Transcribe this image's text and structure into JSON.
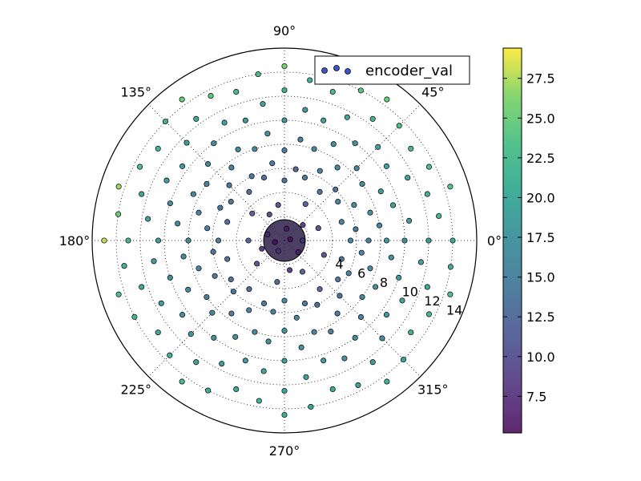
{
  "chart_data": {
    "type": "scatter",
    "projection": "polar",
    "theta_ticks": [
      {
        "deg": 0,
        "label": "0°"
      },
      {
        "deg": 45,
        "label": "45°"
      },
      {
        "deg": 90,
        "label": "90°"
      },
      {
        "deg": 135,
        "label": "135°"
      },
      {
        "deg": 180,
        "label": "180°"
      },
      {
        "deg": 225,
        "label": "225°"
      },
      {
        "deg": 270,
        "label": "270°"
      },
      {
        "deg": 315,
        "label": "315°"
      }
    ],
    "r_ticks": [
      2,
      4,
      6,
      8,
      10,
      12,
      14
    ],
    "r_tick_labels": [
      "4",
      "6",
      "8",
      "10",
      "12",
      "14"
    ],
    "rlim": [
      0,
      16
    ],
    "grid": true,
    "legend": {
      "label": "encoder_val",
      "location": "upper right"
    },
    "colorbar": {
      "cmap": "viridis",
      "range": [
        5.2,
        29.4
      ],
      "ticks": [
        7.5,
        10.0,
        12.5,
        15.0,
        17.5,
        20.0,
        22.5,
        25.0,
        27.5
      ],
      "tick_labels": [
        "7.5",
        "10.0",
        "12.5",
        "15.0",
        "17.5",
        "20.0",
        "22.5",
        "25.0",
        "27.5"
      ]
    },
    "series": [
      {
        "name": "encoder_val",
        "points": [
          {
            "theta": 0,
            "r": 5.5,
            "c": 16
          },
          {
            "theta": 0,
            "r": 7.0,
            "c": 15
          },
          {
            "theta": 0,
            "r": 8.5,
            "c": 18
          },
          {
            "theta": 0,
            "r": 10.0,
            "c": 17
          },
          {
            "theta": 0,
            "r": 12.0,
            "c": 19
          },
          {
            "theta": 0,
            "r": 14.0,
            "c": 20
          },
          {
            "theta": 9,
            "r": 6.0,
            "c": 14
          },
          {
            "theta": 9,
            "r": 8.0,
            "c": 16
          },
          {
            "theta": 9,
            "r": 10.5,
            "c": 18
          },
          {
            "theta": 9,
            "r": 13.0,
            "c": 22
          },
          {
            "theta": 18,
            "r": 5.0,
            "c": 15
          },
          {
            "theta": 18,
            "r": 7.5,
            "c": 17
          },
          {
            "theta": 18,
            "r": 9.5,
            "c": 19
          },
          {
            "theta": 18,
            "r": 12.5,
            "c": 21
          },
          {
            "theta": 18,
            "r": 14.5,
            "c": 24
          },
          {
            "theta": 27,
            "r": 6.5,
            "c": 16
          },
          {
            "theta": 27,
            "r": 9.0,
            "c": 18
          },
          {
            "theta": 27,
            "r": 11.5,
            "c": 20
          },
          {
            "theta": 27,
            "r": 13.5,
            "c": 23
          },
          {
            "theta": 36,
            "r": 5.5,
            "c": 15
          },
          {
            "theta": 36,
            "r": 8.0,
            "c": 17
          },
          {
            "theta": 36,
            "r": 10.5,
            "c": 19
          },
          {
            "theta": 36,
            "r": 13.0,
            "c": 22
          },
          {
            "theta": 45,
            "r": 6.0,
            "c": 14
          },
          {
            "theta": 45,
            "r": 8.5,
            "c": 16
          },
          {
            "theta": 45,
            "r": 11.0,
            "c": 19
          },
          {
            "theta": 45,
            "r": 13.5,
            "c": 23
          },
          {
            "theta": 54,
            "r": 5.0,
            "c": 13
          },
          {
            "theta": 54,
            "r": 7.5,
            "c": 16
          },
          {
            "theta": 54,
            "r": 10.0,
            "c": 18
          },
          {
            "theta": 54,
            "r": 12.5,
            "c": 21
          },
          {
            "theta": 54,
            "r": 14.5,
            "c": 25
          },
          {
            "theta": 63,
            "r": 6.5,
            "c": 15
          },
          {
            "theta": 63,
            "r": 9.0,
            "c": 17
          },
          {
            "theta": 63,
            "r": 11.5,
            "c": 20
          },
          {
            "theta": 63,
            "r": 14.0,
            "c": 24
          },
          {
            "theta": 72,
            "r": 5.5,
            "c": 14
          },
          {
            "theta": 72,
            "r": 8.0,
            "c": 16
          },
          {
            "theta": 72,
            "r": 10.5,
            "c": 19
          },
          {
            "theta": 72,
            "r": 13.0,
            "c": 22
          },
          {
            "theta": 81,
            "r": 6.0,
            "c": 12
          },
          {
            "theta": 81,
            "r": 8.5,
            "c": 15
          },
          {
            "theta": 81,
            "r": 11.0,
            "c": 18
          },
          {
            "theta": 81,
            "r": 13.5,
            "c": 21
          },
          {
            "theta": 90,
            "r": 5.0,
            "c": 13
          },
          {
            "theta": 90,
            "r": 7.5,
            "c": 15
          },
          {
            "theta": 90,
            "r": 10.0,
            "c": 18
          },
          {
            "theta": 90,
            "r": 12.5,
            "c": 21
          },
          {
            "theta": 90,
            "r": 14.5,
            "c": 26
          },
          {
            "theta": 99,
            "r": 6.5,
            "c": 14
          },
          {
            "theta": 99,
            "r": 9.0,
            "c": 17
          },
          {
            "theta": 99,
            "r": 11.5,
            "c": 19
          },
          {
            "theta": 99,
            "r": 14.0,
            "c": 23
          },
          {
            "theta": 108,
            "r": 5.5,
            "c": 13
          },
          {
            "theta": 108,
            "r": 8.0,
            "c": 16
          },
          {
            "theta": 108,
            "r": 10.5,
            "c": 18
          },
          {
            "theta": 108,
            "r": 13.0,
            "c": 22
          },
          {
            "theta": 117,
            "r": 6.0,
            "c": 14
          },
          {
            "theta": 117,
            "r": 8.5,
            "c": 16
          },
          {
            "theta": 117,
            "r": 11.0,
            "c": 19
          },
          {
            "theta": 117,
            "r": 13.5,
            "c": 24
          },
          {
            "theta": 126,
            "r": 5.0,
            "c": 12
          },
          {
            "theta": 126,
            "r": 7.5,
            "c": 15
          },
          {
            "theta": 126,
            "r": 10.0,
            "c": 17
          },
          {
            "theta": 126,
            "r": 12.5,
            "c": 20
          },
          {
            "theta": 126,
            "r": 14.5,
            "c": 25
          },
          {
            "theta": 135,
            "r": 6.5,
            "c": 14
          },
          {
            "theta": 135,
            "r": 9.0,
            "c": 16
          },
          {
            "theta": 135,
            "r": 11.5,
            "c": 19
          },
          {
            "theta": 135,
            "r": 14.0,
            "c": 22
          },
          {
            "theta": 144,
            "r": 5.5,
            "c": 13
          },
          {
            "theta": 144,
            "r": 8.0,
            "c": 15
          },
          {
            "theta": 144,
            "r": 10.5,
            "c": 18
          },
          {
            "theta": 144,
            "r": 13.0,
            "c": 21
          },
          {
            "theta": 153,
            "r": 6.0,
            "c": 14
          },
          {
            "theta": 153,
            "r": 8.5,
            "c": 16
          },
          {
            "theta": 153,
            "r": 11.0,
            "c": 18
          },
          {
            "theta": 153,
            "r": 13.5,
            "c": 23
          },
          {
            "theta": 162,
            "r": 5.0,
            "c": 13
          },
          {
            "theta": 162,
            "r": 7.5,
            "c": 15
          },
          {
            "theta": 162,
            "r": 10.0,
            "c": 17
          },
          {
            "theta": 162,
            "r": 12.5,
            "c": 20
          },
          {
            "theta": 162,
            "r": 14.5,
            "c": 27
          },
          {
            "theta": 171,
            "r": 6.5,
            "c": 14
          },
          {
            "theta": 171,
            "r": 9.0,
            "c": 16
          },
          {
            "theta": 171,
            "r": 11.5,
            "c": 19
          },
          {
            "theta": 171,
            "r": 14.0,
            "c": 25
          },
          {
            "theta": 180,
            "r": 5.5,
            "c": 15
          },
          {
            "theta": 180,
            "r": 8.0,
            "c": 17
          },
          {
            "theta": 180,
            "r": 10.5,
            "c": 19
          },
          {
            "theta": 180,
            "r": 13.0,
            "c": 22
          },
          {
            "theta": 180,
            "r": 15.0,
            "c": 28
          },
          {
            "theta": 189,
            "r": 6.0,
            "c": 14
          },
          {
            "theta": 189,
            "r": 8.5,
            "c": 16
          },
          {
            "theta": 189,
            "r": 11.0,
            "c": 18
          },
          {
            "theta": 189,
            "r": 13.5,
            "c": 21
          },
          {
            "theta": 198,
            "r": 5.0,
            "c": 13
          },
          {
            "theta": 198,
            "r": 7.5,
            "c": 15
          },
          {
            "theta": 198,
            "r": 10.0,
            "c": 17
          },
          {
            "theta": 198,
            "r": 12.5,
            "c": 20
          },
          {
            "theta": 198,
            "r": 14.5,
            "c": 23
          },
          {
            "theta": 207,
            "r": 6.5,
            "c": 14
          },
          {
            "theta": 207,
            "r": 9.0,
            "c": 16
          },
          {
            "theta": 207,
            "r": 11.5,
            "c": 18
          },
          {
            "theta": 207,
            "r": 14.0,
            "c": 22
          },
          {
            "theta": 216,
            "r": 5.5,
            "c": 13
          },
          {
            "theta": 216,
            "r": 8.0,
            "c": 15
          },
          {
            "theta": 216,
            "r": 10.5,
            "c": 17
          },
          {
            "theta": 216,
            "r": 13.0,
            "c": 20
          },
          {
            "theta": 225,
            "r": 6.0,
            "c": 14
          },
          {
            "theta": 225,
            "r": 8.5,
            "c": 16
          },
          {
            "theta": 225,
            "r": 11.0,
            "c": 18
          },
          {
            "theta": 225,
            "r": 13.5,
            "c": 21
          },
          {
            "theta": 234,
            "r": 5.0,
            "c": 12
          },
          {
            "theta": 234,
            "r": 7.5,
            "c": 14
          },
          {
            "theta": 234,
            "r": 10.0,
            "c": 17
          },
          {
            "theta": 234,
            "r": 12.5,
            "c": 19
          },
          {
            "theta": 234,
            "r": 14.5,
            "c": 22
          },
          {
            "theta": 243,
            "r": 6.5,
            "c": 15
          },
          {
            "theta": 243,
            "r": 9.0,
            "c": 17
          },
          {
            "theta": 243,
            "r": 11.5,
            "c": 18
          },
          {
            "theta": 243,
            "r": 14.0,
            "c": 21
          },
          {
            "theta": 252,
            "r": 5.5,
            "c": 14
          },
          {
            "theta": 252,
            "r": 8.0,
            "c": 16
          },
          {
            "theta": 252,
            "r": 10.5,
            "c": 18
          },
          {
            "theta": 252,
            "r": 13.0,
            "c": 20
          },
          {
            "theta": 261,
            "r": 6.0,
            "c": 15
          },
          {
            "theta": 261,
            "r": 8.5,
            "c": 17
          },
          {
            "theta": 261,
            "r": 11.0,
            "c": 19
          },
          {
            "theta": 261,
            "r": 13.5,
            "c": 21
          },
          {
            "theta": 270,
            "r": 5.0,
            "c": 16
          },
          {
            "theta": 270,
            "r": 7.5,
            "c": 18
          },
          {
            "theta": 270,
            "r": 10.0,
            "c": 19
          },
          {
            "theta": 270,
            "r": 12.5,
            "c": 20
          },
          {
            "theta": 270,
            "r": 14.5,
            "c": 21
          },
          {
            "theta": 279,
            "r": 6.5,
            "c": 15
          },
          {
            "theta": 279,
            "r": 9.0,
            "c": 17
          },
          {
            "theta": 279,
            "r": 11.5,
            "c": 19
          },
          {
            "theta": 279,
            "r": 14.0,
            "c": 20
          },
          {
            "theta": 288,
            "r": 5.5,
            "c": 14
          },
          {
            "theta": 288,
            "r": 8.0,
            "c": 16
          },
          {
            "theta": 288,
            "r": 10.5,
            "c": 18
          },
          {
            "theta": 288,
            "r": 13.0,
            "c": 20
          },
          {
            "theta": 297,
            "r": 6.0,
            "c": 13
          },
          {
            "theta": 297,
            "r": 8.5,
            "c": 15
          },
          {
            "theta": 297,
            "r": 11.0,
            "c": 17
          },
          {
            "theta": 297,
            "r": 13.5,
            "c": 19
          },
          {
            "theta": 306,
            "r": 5.0,
            "c": 12
          },
          {
            "theta": 306,
            "r": 7.5,
            "c": 14
          },
          {
            "theta": 306,
            "r": 10.0,
            "c": 16
          },
          {
            "theta": 306,
            "r": 12.5,
            "c": 18
          },
          {
            "theta": 306,
            "r": 14.5,
            "c": 21
          },
          {
            "theta": 315,
            "r": 6.5,
            "c": 13
          },
          {
            "theta": 315,
            "r": 9.0,
            "c": 15
          },
          {
            "theta": 315,
            "r": 11.5,
            "c": 17
          },
          {
            "theta": 315,
            "r": 14.0,
            "c": 20
          },
          {
            "theta": 324,
            "r": 5.5,
            "c": 14
          },
          {
            "theta": 324,
            "r": 8.0,
            "c": 16
          },
          {
            "theta": 324,
            "r": 10.5,
            "c": 18
          },
          {
            "theta": 324,
            "r": 13.0,
            "c": 21
          },
          {
            "theta": 333,
            "r": 6.0,
            "c": 15
          },
          {
            "theta": 333,
            "r": 8.5,
            "c": 17
          },
          {
            "theta": 333,
            "r": 11.0,
            "c": 19
          },
          {
            "theta": 333,
            "r": 13.5,
            "c": 22
          },
          {
            "theta": 342,
            "r": 5.0,
            "c": 14
          },
          {
            "theta": 342,
            "r": 7.5,
            "c": 16
          },
          {
            "theta": 342,
            "r": 10.0,
            "c": 18
          },
          {
            "theta": 342,
            "r": 12.5,
            "c": 20
          },
          {
            "theta": 342,
            "r": 14.5,
            "c": 23
          },
          {
            "theta": 351,
            "r": 6.5,
            "c": 15
          },
          {
            "theta": 351,
            "r": 9.0,
            "c": 17
          },
          {
            "theta": 351,
            "r": 11.5,
            "c": 19
          },
          {
            "theta": 351,
            "r": 14.0,
            "c": 21
          },
          {
            "theta": 0,
            "r": 1.5,
            "c": 9
          },
          {
            "theta": 40,
            "r": 2.0,
            "c": 8
          },
          {
            "theta": 80,
            "r": 1.0,
            "c": 7
          },
          {
            "theta": 120,
            "r": 2.5,
            "c": 9
          },
          {
            "theta": 160,
            "r": 1.5,
            "c": 8
          },
          {
            "theta": 200,
            "r": 2.0,
            "c": 7
          },
          {
            "theta": 240,
            "r": 1.0,
            "c": 9
          },
          {
            "theta": 280,
            "r": 2.5,
            "c": 8
          },
          {
            "theta": 320,
            "r": 1.5,
            "c": 7
          },
          {
            "theta": 20,
            "r": 3.0,
            "c": 10
          },
          {
            "theta": 60,
            "r": 3.5,
            "c": 11
          },
          {
            "theta": 100,
            "r": 3.0,
            "c": 10
          },
          {
            "theta": 140,
            "r": 3.5,
            "c": 11
          },
          {
            "theta": 220,
            "r": 3.0,
            "c": 10
          },
          {
            "theta": 260,
            "r": 3.5,
            "c": 12
          },
          {
            "theta": 300,
            "r": 3.0,
            "c": 11
          },
          {
            "theta": 340,
            "r": 3.5,
            "c": 10
          },
          {
            "theta": 180,
            "r": 3.0,
            "c": 12
          },
          {
            "theta": 10,
            "r": 0.5,
            "c": 6
          },
          {
            "theta": 190,
            "r": 0.8,
            "c": 6
          }
        ]
      }
    ]
  }
}
